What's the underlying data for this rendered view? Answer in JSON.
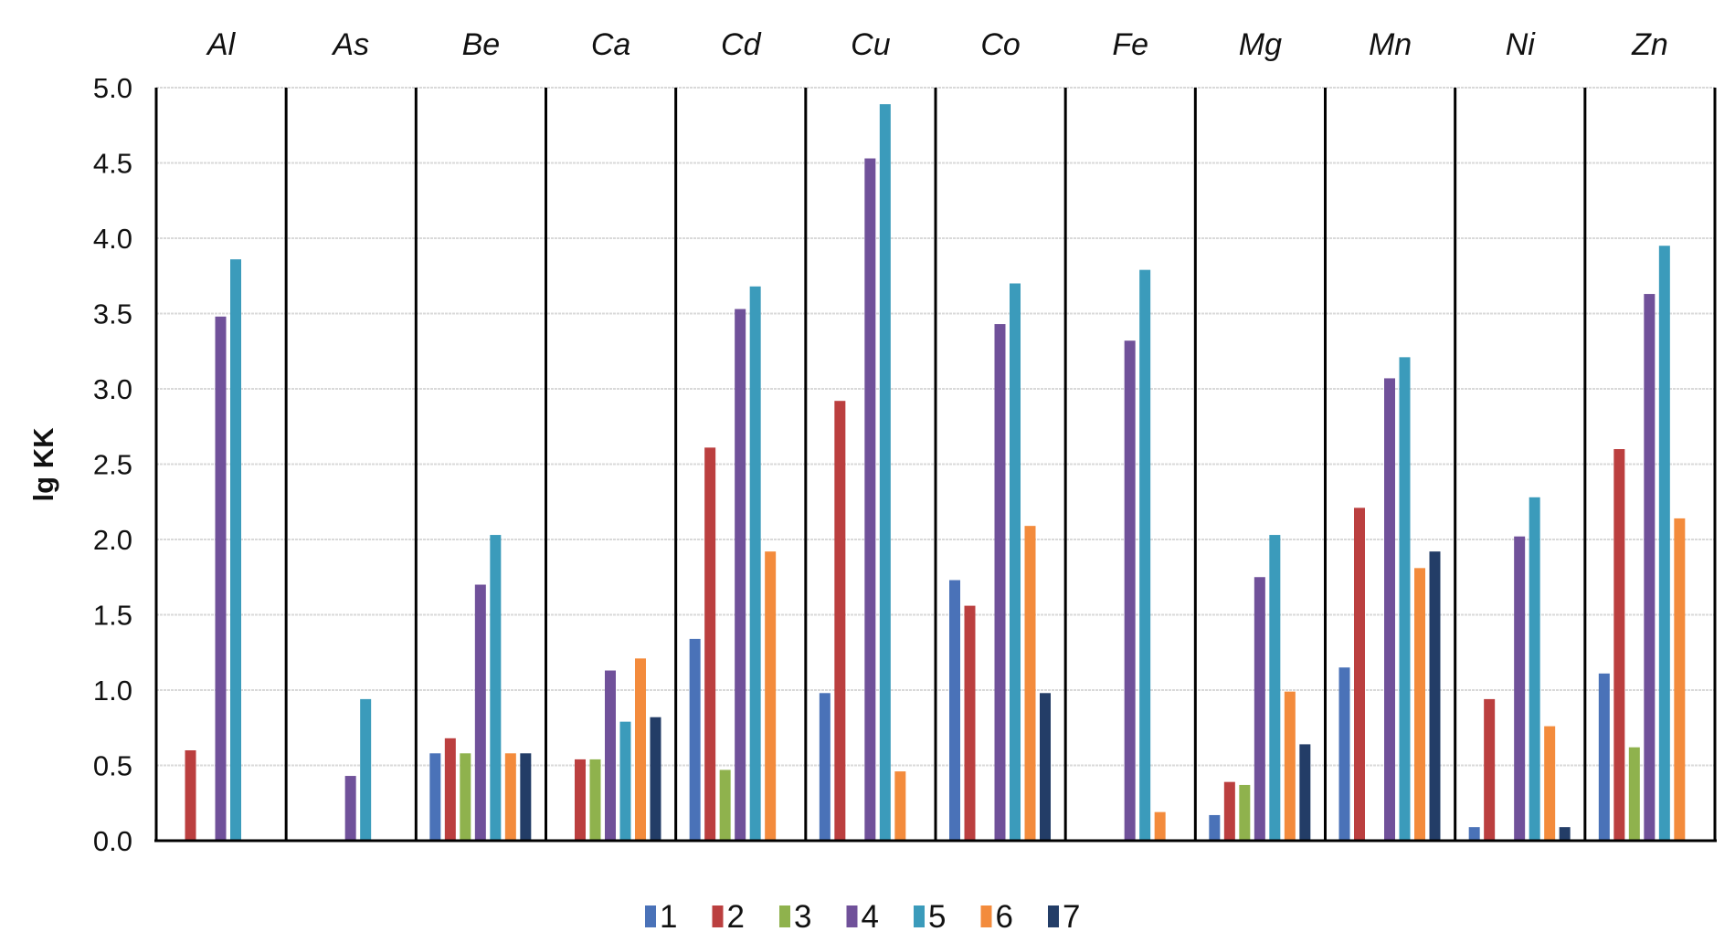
{
  "chart_data": {
    "type": "bar",
    "title": "",
    "xlabel": "",
    "ylabel": "lg KK",
    "ylim": [
      0,
      5
    ],
    "yticks": [
      "0.0",
      "0.5",
      "1.0",
      "1.5",
      "2.0",
      "2.5",
      "3.0",
      "3.5",
      "4.0",
      "4.5",
      "5.0"
    ],
    "grid": true,
    "legend_position": "bottom-center",
    "categories": [
      "Al",
      "As",
      "Be",
      "Ca",
      "Cd",
      "Cu",
      "Co",
      "Fe",
      "Mg",
      "Mn",
      "Ni",
      "Zn"
    ],
    "series": [
      {
        "name": "1",
        "color": "#4a72b8",
        "values": [
          null,
          null,
          0.58,
          null,
          1.34,
          0.98,
          1.73,
          null,
          0.17,
          1.15,
          0.09,
          1.11
        ]
      },
      {
        "name": "2",
        "color": "#bb3f3f",
        "values": [
          0.6,
          null,
          0.68,
          0.54,
          2.61,
          2.92,
          1.56,
          null,
          0.39,
          2.21,
          0.94,
          2.6
        ]
      },
      {
        "name": "3",
        "color": "#8fb24d",
        "values": [
          null,
          null,
          0.58,
          0.54,
          0.47,
          null,
          null,
          null,
          0.37,
          null,
          null,
          0.62
        ]
      },
      {
        "name": "4",
        "color": "#70519a",
        "values": [
          3.48,
          0.43,
          1.7,
          1.13,
          3.53,
          4.53,
          3.43,
          3.32,
          1.75,
          3.07,
          2.02,
          3.63
        ]
      },
      {
        "name": "5",
        "color": "#3b9bbb",
        "values": [
          3.86,
          0.94,
          2.03,
          0.79,
          3.68,
          4.89,
          3.7,
          3.79,
          2.03,
          3.21,
          2.28,
          3.95
        ]
      },
      {
        "name": "6",
        "color": "#f38b3c",
        "values": [
          null,
          null,
          0.58,
          1.21,
          1.92,
          0.46,
          2.09,
          0.19,
          0.99,
          1.81,
          0.76,
          2.14
        ]
      },
      {
        "name": "7",
        "color": "#233d67",
        "values": [
          null,
          null,
          0.58,
          0.82,
          null,
          null,
          0.98,
          null,
          0.64,
          1.92,
          0.09,
          null
        ]
      }
    ]
  }
}
